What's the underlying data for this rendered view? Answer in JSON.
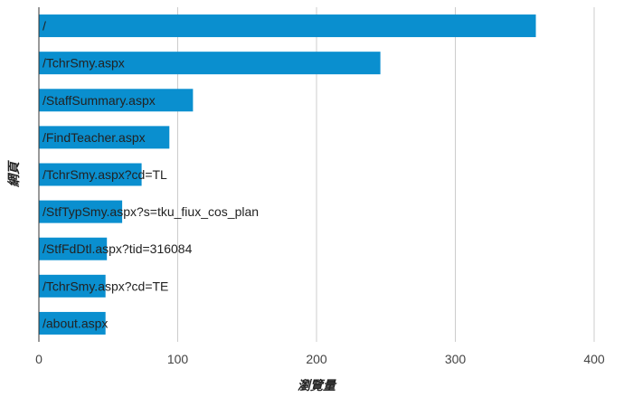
{
  "chart_data": {
    "type": "bar",
    "orientation": "horizontal",
    "categories": [
      "/",
      "/TchrSmy.aspx",
      "/StaffSummary.aspx",
      "/FindTeacher.aspx",
      "/TchrSmy.aspx?cd=TL",
      "/StfTypSmy.aspx?s=tku_fiux_cos_plan",
      "/StfFdDtl.aspx?tid=316084",
      "/TchrSmy.aspx?cd=TE",
      "/about.aspx"
    ],
    "series": [
      {
        "values": [
          358,
          246,
          111,
          94,
          74,
          60,
          49,
          48,
          48
        ]
      }
    ],
    "xlabel": "瀏覽量",
    "ylabel": "網頁",
    "xlim": [
      0,
      400
    ],
    "xticks": [
      0,
      100,
      200,
      300,
      400
    ],
    "grid": true,
    "bar_color": "#0a8fcf",
    "grid_color": "#cccccc"
  }
}
